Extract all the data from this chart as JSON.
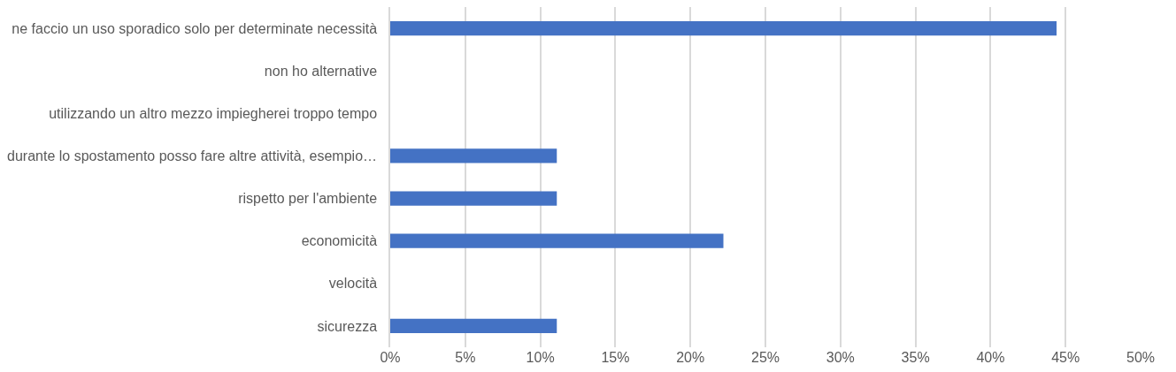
{
  "chart_data": {
    "type": "bar",
    "orientation": "horizontal",
    "categories": [
      "ne faccio un uso sporadico solo per determinate necessità",
      "non ho alternative",
      "utilizzando un altro mezzo impiegherei troppo tempo",
      "durante lo spostamento posso fare altre attività, esempio…",
      "rispetto per l'ambiente",
      "economicità",
      "velocità",
      "sicurezza"
    ],
    "values": [
      44.4,
      0,
      0,
      11.1,
      11.1,
      22.2,
      0,
      11.1
    ],
    "color": "#4472c4",
    "xlim": [
      0,
      50
    ],
    "xticks": [
      {
        "value": 0,
        "label": "0%"
      },
      {
        "value": 5,
        "label": "5%"
      },
      {
        "value": 10,
        "label": "10%"
      },
      {
        "value": 15,
        "label": "15%"
      },
      {
        "value": 20,
        "label": "20%"
      },
      {
        "value": 25,
        "label": "25%"
      },
      {
        "value": 30,
        "label": "30%"
      },
      {
        "value": 35,
        "label": "35%"
      },
      {
        "value": 40,
        "label": "40%"
      },
      {
        "value": 45,
        "label": "45%"
      },
      {
        "value": 50,
        "label": "50%"
      }
    ],
    "grid": "x"
  }
}
